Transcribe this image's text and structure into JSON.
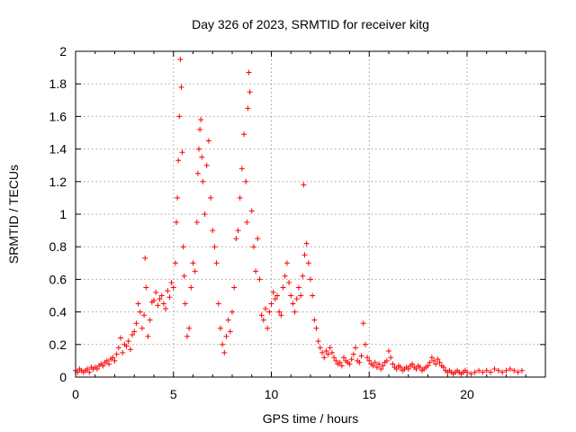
{
  "chart_data": {
    "type": "scatter",
    "title": "Day 326 of 2023, SRMTID for receiver kitg",
    "xlabel": "GPS time / hours",
    "ylabel": "SRMTID / TECUs",
    "xlim": [
      0,
      24
    ],
    "ylim": [
      0,
      2
    ],
    "x_ticks": [
      "0",
      "5",
      "10",
      "15",
      "20"
    ],
    "y_ticks": [
      "0",
      "0.2",
      "0.4",
      "0.6",
      "0.8",
      "1",
      "1.2",
      "1.4",
      "1.6",
      "1.8",
      "2"
    ],
    "grid": true,
    "marker": "plus",
    "color": "#ff0000",
    "series": [
      {
        "name": "SRMTID",
        "points": [
          [
            0.0,
            0.04
          ],
          [
            0.1,
            0.03
          ],
          [
            0.2,
            0.05
          ],
          [
            0.3,
            0.04
          ],
          [
            0.4,
            0.03
          ],
          [
            0.5,
            0.04
          ],
          [
            0.6,
            0.05
          ],
          [
            0.7,
            0.03
          ],
          [
            0.8,
            0.06
          ],
          [
            0.9,
            0.05
          ],
          [
            1.0,
            0.06
          ],
          [
            1.1,
            0.05
          ],
          [
            1.2,
            0.07
          ],
          [
            1.3,
            0.08
          ],
          [
            1.4,
            0.07
          ],
          [
            1.5,
            0.09
          ],
          [
            1.6,
            0.1
          ],
          [
            1.7,
            0.08
          ],
          [
            1.8,
            0.11
          ],
          [
            1.9,
            0.12
          ],
          [
            2.0,
            0.1
          ],
          [
            2.1,
            0.14
          ],
          [
            2.2,
            0.18
          ],
          [
            2.3,
            0.24
          ],
          [
            2.4,
            0.15
          ],
          [
            2.5,
            0.2
          ],
          [
            2.6,
            0.19
          ],
          [
            2.7,
            0.22
          ],
          [
            2.8,
            0.17
          ],
          [
            2.9,
            0.26
          ],
          [
            3.0,
            0.28
          ],
          [
            3.1,
            0.33
          ],
          [
            3.2,
            0.45
          ],
          [
            3.3,
            0.4
          ],
          [
            3.4,
            0.3
          ],
          [
            3.5,
            0.38
          ],
          [
            3.55,
            0.73
          ],
          [
            3.6,
            0.55
          ],
          [
            3.7,
            0.25
          ],
          [
            3.8,
            0.35
          ],
          [
            3.9,
            0.46
          ],
          [
            4.0,
            0.47
          ],
          [
            4.1,
            0.52
          ],
          [
            4.2,
            0.44
          ],
          [
            4.3,
            0.48
          ],
          [
            4.4,
            0.5
          ],
          [
            4.5,
            0.45
          ],
          [
            4.6,
            0.42
          ],
          [
            4.7,
            0.53
          ],
          [
            4.8,
            0.49
          ],
          [
            4.9,
            0.58
          ],
          [
            5.0,
            0.55
          ],
          [
            5.1,
            0.7
          ],
          [
            5.15,
            0.95
          ],
          [
            5.2,
            1.1
          ],
          [
            5.25,
            1.33
          ],
          [
            5.3,
            1.6
          ],
          [
            5.35,
            1.95
          ],
          [
            5.4,
            1.78
          ],
          [
            5.45,
            1.38
          ],
          [
            5.5,
            0.8
          ],
          [
            5.55,
            0.62
          ],
          [
            5.6,
            0.45
          ],
          [
            5.7,
            0.25
          ],
          [
            5.8,
            0.3
          ],
          [
            5.9,
            0.55
          ],
          [
            6.0,
            0.7
          ],
          [
            6.1,
            0.65
          ],
          [
            6.2,
            0.95
          ],
          [
            6.25,
            1.25
          ],
          [
            6.3,
            1.4
          ],
          [
            6.35,
            1.52
          ],
          [
            6.4,
            1.58
          ],
          [
            6.45,
            1.35
          ],
          [
            6.5,
            1.2
          ],
          [
            6.6,
            1.0
          ],
          [
            6.7,
            1.3
          ],
          [
            6.8,
            1.45
          ],
          [
            6.9,
            1.1
          ],
          [
            7.0,
            0.9
          ],
          [
            7.1,
            0.8
          ],
          [
            7.2,
            0.7
          ],
          [
            7.3,
            0.45
          ],
          [
            7.4,
            0.3
          ],
          [
            7.5,
            0.2
          ],
          [
            7.6,
            0.15
          ],
          [
            7.7,
            0.25
          ],
          [
            7.8,
            0.35
          ],
          [
            7.9,
            0.28
          ],
          [
            8.0,
            0.4
          ],
          [
            8.1,
            0.55
          ],
          [
            8.2,
            0.85
          ],
          [
            8.3,
            0.9
          ],
          [
            8.4,
            1.1
          ],
          [
            8.5,
            1.28
          ],
          [
            8.6,
            1.49
          ],
          [
            8.7,
            1.2
          ],
          [
            8.75,
            0.95
          ],
          [
            8.8,
            1.65
          ],
          [
            8.85,
            1.87
          ],
          [
            8.9,
            1.75
          ],
          [
            9.0,
            1.02
          ],
          [
            9.1,
            0.8
          ],
          [
            9.2,
            0.65
          ],
          [
            9.3,
            0.85
          ],
          [
            9.4,
            0.6
          ],
          [
            9.5,
            0.38
          ],
          [
            9.6,
            0.35
          ],
          [
            9.7,
            0.42
          ],
          [
            9.8,
            0.3
          ],
          [
            9.9,
            0.4
          ],
          [
            10.0,
            0.45
          ],
          [
            10.1,
            0.52
          ],
          [
            10.2,
            0.48
          ],
          [
            10.3,
            0.5
          ],
          [
            10.4,
            0.4
          ],
          [
            10.5,
            0.38
          ],
          [
            10.6,
            0.55
          ],
          [
            10.7,
            0.62
          ],
          [
            10.8,
            0.7
          ],
          [
            10.9,
            0.58
          ],
          [
            11.0,
            0.5
          ],
          [
            11.1,
            0.45
          ],
          [
            11.2,
            0.4
          ],
          [
            11.3,
            0.48
          ],
          [
            11.4,
            0.55
          ],
          [
            11.5,
            0.5
          ],
          [
            11.6,
            0.62
          ],
          [
            11.65,
            1.18
          ],
          [
            11.7,
            0.75
          ],
          [
            11.8,
            0.82
          ],
          [
            11.9,
            0.7
          ],
          [
            12.0,
            0.6
          ],
          [
            12.1,
            0.5
          ],
          [
            12.2,
            0.35
          ],
          [
            12.3,
            0.3
          ],
          [
            12.4,
            0.22
          ],
          [
            12.5,
            0.18
          ],
          [
            12.6,
            0.15
          ],
          [
            12.7,
            0.12
          ],
          [
            12.8,
            0.16
          ],
          [
            12.9,
            0.14
          ],
          [
            13.0,
            0.18
          ],
          [
            13.1,
            0.15
          ],
          [
            13.2,
            0.12
          ],
          [
            13.3,
            0.1
          ],
          [
            13.4,
            0.08
          ],
          [
            13.5,
            0.09
          ],
          [
            13.6,
            0.07
          ],
          [
            13.7,
            0.12
          ],
          [
            13.8,
            0.1
          ],
          [
            13.9,
            0.09
          ],
          [
            14.0,
            0.08
          ],
          [
            14.1,
            0.11
          ],
          [
            14.2,
            0.14
          ],
          [
            14.3,
            0.18
          ],
          [
            14.4,
            0.1
          ],
          [
            14.5,
            0.09
          ],
          [
            14.6,
            0.13
          ],
          [
            14.7,
            0.33
          ],
          [
            14.8,
            0.2
          ],
          [
            14.9,
            0.12
          ],
          [
            15.0,
            0.1
          ],
          [
            15.1,
            0.08
          ],
          [
            15.2,
            0.07
          ],
          [
            15.3,
            0.09
          ],
          [
            15.4,
            0.06
          ],
          [
            15.5,
            0.08
          ],
          [
            15.6,
            0.05
          ],
          [
            15.7,
            0.07
          ],
          [
            15.8,
            0.09
          ],
          [
            15.9,
            0.1
          ],
          [
            16.0,
            0.16
          ],
          [
            16.1,
            0.12
          ],
          [
            16.2,
            0.08
          ],
          [
            16.3,
            0.06
          ],
          [
            16.4,
            0.05
          ],
          [
            16.5,
            0.07
          ],
          [
            16.6,
            0.06
          ],
          [
            16.7,
            0.04
          ],
          [
            16.8,
            0.05
          ],
          [
            16.9,
            0.06
          ],
          [
            17.0,
            0.05
          ],
          [
            17.1,
            0.07
          ],
          [
            17.2,
            0.08
          ],
          [
            17.3,
            0.06
          ],
          [
            17.4,
            0.05
          ],
          [
            17.5,
            0.07
          ],
          [
            17.6,
            0.06
          ],
          [
            17.7,
            0.04
          ],
          [
            17.8,
            0.05
          ],
          [
            17.9,
            0.06
          ],
          [
            18.0,
            0.07
          ],
          [
            18.1,
            0.09
          ],
          [
            18.2,
            0.12
          ],
          [
            18.3,
            0.1
          ],
          [
            18.4,
            0.08
          ],
          [
            18.5,
            0.11
          ],
          [
            18.6,
            0.09
          ],
          [
            18.7,
            0.07
          ],
          [
            18.8,
            0.06
          ],
          [
            18.9,
            0.04
          ],
          [
            19.0,
            0.03
          ],
          [
            19.1,
            0.04
          ],
          [
            19.2,
            0.03
          ],
          [
            19.3,
            0.02
          ],
          [
            19.4,
            0.03
          ],
          [
            19.5,
            0.04
          ],
          [
            19.6,
            0.03
          ],
          [
            19.7,
            0.02
          ],
          [
            19.8,
            0.03
          ],
          [
            19.9,
            0.04
          ],
          [
            20.0,
            0.03
          ],
          [
            20.2,
            0.02
          ],
          [
            20.4,
            0.03
          ],
          [
            20.6,
            0.04
          ],
          [
            20.8,
            0.03
          ],
          [
            21.0,
            0.04
          ],
          [
            21.2,
            0.03
          ],
          [
            21.4,
            0.05
          ],
          [
            21.6,
            0.04
          ],
          [
            21.8,
            0.03
          ],
          [
            22.0,
            0.04
          ],
          [
            22.2,
            0.05
          ],
          [
            22.4,
            0.04
          ],
          [
            22.6,
            0.03
          ],
          [
            22.8,
            0.04
          ]
        ]
      }
    ]
  }
}
